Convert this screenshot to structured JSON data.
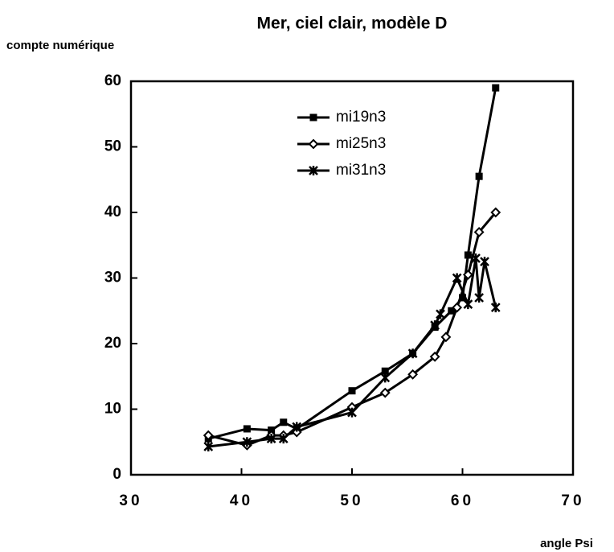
{
  "chart_data": {
    "type": "line",
    "title": "Mer, ciel clair, modèle D",
    "y_label": "compte numérique",
    "x_label": "angle Psi",
    "xlim": [
      30,
      70
    ],
    "xticks": [
      30,
      40,
      50,
      60,
      70
    ],
    "ylim": [
      0,
      60
    ],
    "yticks": [
      0,
      10,
      20,
      30,
      40,
      50,
      60
    ],
    "color": "#000000",
    "series": [
      {
        "name": "mi19n3",
        "marker": "square",
        "x": [
          37,
          40.5,
          42.7,
          43.8,
          45,
          50,
          53,
          55.5,
          57.5,
          59,
          60,
          60.5,
          61.5,
          63
        ],
        "values": [
          5.5,
          7,
          6.8,
          8,
          7,
          12.8,
          15.8,
          18.5,
          22.5,
          25,
          27,
          33.5,
          45.5,
          59
        ]
      },
      {
        "name": "mi25n3",
        "marker": "diamond",
        "x": [
          37,
          40.5,
          42.7,
          43.8,
          45,
          50,
          53,
          55.5,
          57.5,
          58.5,
          59.5,
          60.5,
          61.5,
          63
        ],
        "values": [
          6,
          4.5,
          6,
          6,
          6.5,
          10.3,
          12.5,
          15.3,
          18,
          21,
          25.5,
          30.5,
          37,
          40
        ]
      },
      {
        "name": "mi31n3",
        "marker": "star",
        "x": [
          37,
          40.5,
          42.7,
          43.8,
          45,
          50,
          53,
          55.5,
          57.5,
          58,
          59.5,
          60.5,
          61.2,
          61.5,
          62,
          63
        ],
        "values": [
          4.3,
          5,
          5.5,
          5.5,
          7.3,
          9.5,
          14.8,
          18.5,
          22.8,
          24.5,
          30,
          26,
          33,
          27,
          32.5,
          25.5
        ]
      }
    ]
  }
}
